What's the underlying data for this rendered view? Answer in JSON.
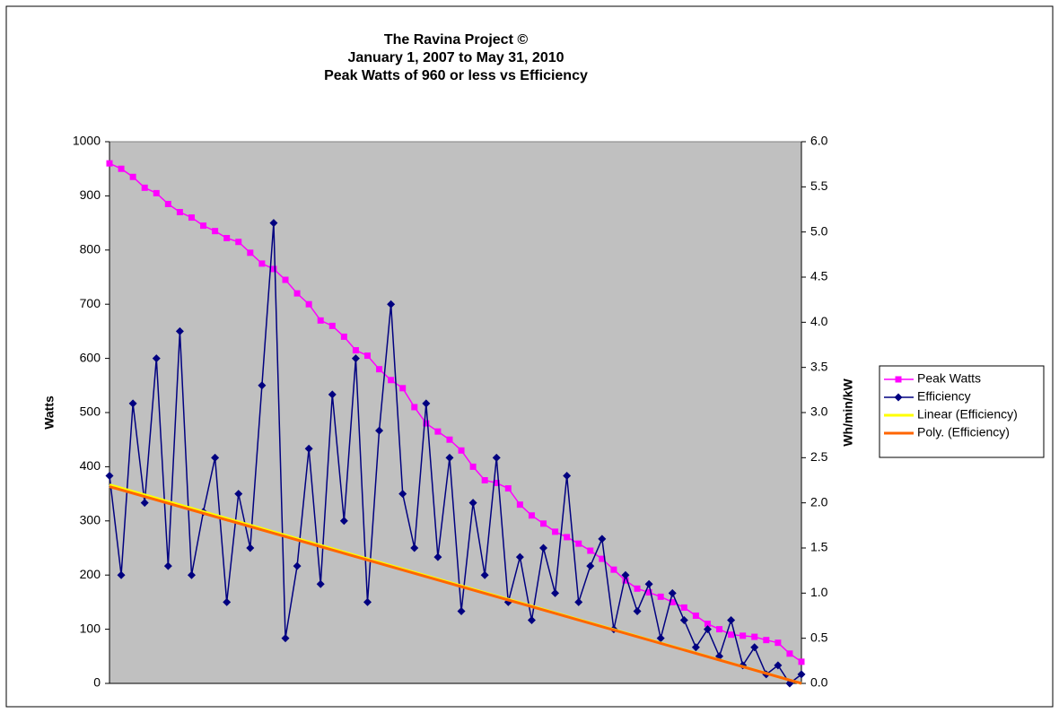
{
  "chart_data": {
    "type": "line",
    "title": [
      "The Ravina Project ©",
      "January 1, 2007 to May 31, 2010",
      "Peak Watts of 960 or less vs Efficiency"
    ],
    "ylabel": "Watts",
    "y2label": "Wh/min/kW",
    "categories": [
      null,
      null,
      null,
      null,
      null,
      null,
      null,
      null,
      null,
      null,
      null,
      null,
      null,
      null,
      null,
      null,
      null,
      null,
      null,
      null,
      null,
      null,
      null,
      null,
      null,
      null,
      null,
      null,
      null,
      null,
      null,
      null,
      null,
      null,
      null,
      null,
      null,
      null,
      null,
      null,
      null,
      null,
      null,
      null,
      null,
      null,
      null,
      null,
      null,
      null,
      null,
      null,
      null,
      null,
      null,
      null,
      null,
      null,
      null,
      null
    ],
    "ylim": [
      0,
      1000
    ],
    "yticks": [
      0,
      100,
      200,
      300,
      400,
      500,
      600,
      700,
      800,
      900,
      1000
    ],
    "y2lim": [
      0,
      6
    ],
    "y2ticks": [
      {
        "value": 0,
        "label": "0.0"
      },
      {
        "value": 0.5,
        "label": "0.5"
      },
      {
        "value": 1,
        "label": "1.0"
      },
      {
        "value": 1.5,
        "label": "1.5"
      },
      {
        "value": 2,
        "label": "2.0"
      },
      {
        "value": 2.5,
        "label": "2.5"
      },
      {
        "value": 3,
        "label": "3.0"
      },
      {
        "value": 3.5,
        "label": "3.5"
      },
      {
        "value": 4,
        "label": "4.0"
      },
      {
        "value": 4.5,
        "label": "4.5"
      },
      {
        "value": 5,
        "label": "5.0"
      },
      {
        "value": 5.5,
        "label": "5.5"
      },
      {
        "value": 6,
        "label": "6.0"
      }
    ],
    "plot_background": "#c0c0c0",
    "legend": "right",
    "series": [
      {
        "name": "Peak Watts",
        "color": "#ff00ff",
        "marker": "square",
        "values": [
          960,
          950,
          935,
          915,
          905,
          885,
          870,
          860,
          845,
          835,
          822,
          815,
          795,
          775,
          765,
          745,
          720,
          700,
          670,
          660,
          640,
          615,
          605,
          580,
          560,
          545,
          510,
          480,
          465,
          450,
          430,
          400,
          375,
          370,
          360,
          330,
          310,
          295,
          280,
          270,
          258,
          245,
          230,
          210,
          190,
          175,
          168,
          160,
          150,
          140,
          125,
          110,
          100,
          90,
          88,
          86,
          80,
          75,
          55,
          40
        ]
      },
      {
        "name": "Efficiency",
        "color": "#000080",
        "marker": "diamond",
        "axis": "y2",
        "values": [
          2.3,
          1.2,
          3.1,
          2.0,
          3.6,
          1.3,
          3.9,
          1.2,
          1.9,
          2.5,
          0.9,
          2.1,
          1.5,
          3.3,
          5.1,
          0.5,
          1.3,
          2.6,
          1.1,
          3.2,
          1.8,
          3.6,
          0.9,
          2.8,
          4.2,
          2.1,
          1.5,
          3.1,
          1.4,
          2.5,
          0.8,
          2.0,
          1.2,
          2.5,
          0.9,
          1.4,
          0.7,
          1.5,
          1.0,
          2.3,
          0.9,
          1.3,
          1.6,
          0.6,
          1.2,
          0.8,
          1.1,
          0.5,
          1.0,
          0.7,
          0.4,
          0.6,
          0.3,
          0.7,
          0.2,
          0.4,
          0.1,
          0.2,
          0.0,
          0.1
        ]
      },
      {
        "name": "Linear (Efficiency)",
        "color": "#ffff00",
        "axis": "y2",
        "x": [
          0,
          59
        ],
        "values": [
          2.2,
          0
        ]
      },
      {
        "name": "Poly. (Efficiency)",
        "color": "#ff6600",
        "axis": "y2",
        "x": [
          0,
          59
        ],
        "values": [
          2.18,
          0
        ]
      }
    ]
  }
}
